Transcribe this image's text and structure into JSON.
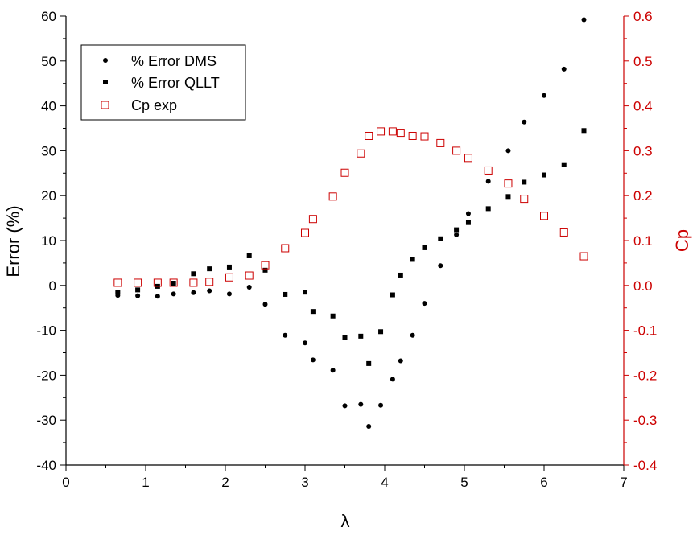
{
  "chart_data": {
    "type": "scatter",
    "xlabel": "λ",
    "ylabel_left": "Error (%)",
    "ylabel_right": "Cp",
    "xlim": [
      0,
      7
    ],
    "ylim_left": [
      -40,
      60
    ],
    "ylim_right": [
      -0.4,
      0.6
    ],
    "x_ticks": [
      0,
      1,
      2,
      3,
      4,
      5,
      6,
      7
    ],
    "y_left_ticks": [
      -40,
      -30,
      -20,
      -10,
      0,
      10,
      20,
      30,
      40,
      50,
      60
    ],
    "y_right_ticks": [
      "-0.4",
      "-0.3",
      "-0.2",
      "-0.1",
      "0.0",
      "0.1",
      "0.2",
      "0.3",
      "0.4",
      "0.5",
      "0.6"
    ],
    "grid": false,
    "legend_position": "top-left",
    "colors": {
      "left_axis": "#000000",
      "right_axis": "#cc0000"
    },
    "series": [
      {
        "name": "% Error DMS",
        "axis": "left",
        "marker": "circle",
        "color": "#000000",
        "points": [
          [
            0.65,
            -2.2
          ],
          [
            0.9,
            -2.3
          ],
          [
            1.15,
            -2.4
          ],
          [
            1.35,
            -1.9
          ],
          [
            1.6,
            -1.6
          ],
          [
            1.8,
            -1.2
          ],
          [
            2.05,
            -1.9
          ],
          [
            2.3,
            -0.4
          ],
          [
            2.5,
            -4.2
          ],
          [
            2.75,
            -11.1
          ],
          [
            3.0,
            -12.8
          ],
          [
            3.1,
            -16.6
          ],
          [
            3.35,
            -18.9
          ],
          [
            3.5,
            -26.8
          ],
          [
            3.7,
            -26.5
          ],
          [
            3.8,
            -31.4
          ],
          [
            3.95,
            -26.7
          ],
          [
            4.1,
            -20.9
          ],
          [
            4.2,
            -16.8
          ],
          [
            4.35,
            -11.1
          ],
          [
            4.5,
            -4.0
          ],
          [
            4.7,
            4.4
          ],
          [
            4.9,
            11.3
          ],
          [
            5.05,
            16.0
          ],
          [
            5.3,
            23.2
          ],
          [
            5.55,
            30.0
          ],
          [
            5.75,
            36.4
          ],
          [
            6.0,
            42.3
          ],
          [
            6.25,
            48.2
          ],
          [
            6.5,
            59.2
          ]
        ]
      },
      {
        "name": "% Error QLLT",
        "axis": "left",
        "marker": "square",
        "color": "#000000",
        "points": [
          [
            0.65,
            -1.5
          ],
          [
            0.9,
            -1.0
          ],
          [
            1.15,
            -0.2
          ],
          [
            1.35,
            0.5
          ],
          [
            1.6,
            2.6
          ],
          [
            1.8,
            3.7
          ],
          [
            2.05,
            4.1
          ],
          [
            2.3,
            6.6
          ],
          [
            2.5,
            3.4
          ],
          [
            2.75,
            -2.0
          ],
          [
            3.0,
            -1.5
          ],
          [
            3.1,
            -5.8
          ],
          [
            3.35,
            -6.8
          ],
          [
            3.5,
            -11.6
          ],
          [
            3.7,
            -11.3
          ],
          [
            3.8,
            -17.4
          ],
          [
            3.95,
            -10.3
          ],
          [
            4.1,
            -2.1
          ],
          [
            4.2,
            2.3
          ],
          [
            4.35,
            5.8
          ],
          [
            4.5,
            8.4
          ],
          [
            4.7,
            10.4
          ],
          [
            4.9,
            12.4
          ],
          [
            5.05,
            14.0
          ],
          [
            5.3,
            17.1
          ],
          [
            5.55,
            19.8
          ],
          [
            5.75,
            23.0
          ],
          [
            6.0,
            24.6
          ],
          [
            6.25,
            26.9
          ],
          [
            6.5,
            34.5
          ]
        ]
      },
      {
        "name": "Cp exp",
        "axis": "right",
        "marker": "open-square",
        "color": "#cc0000",
        "points": [
          [
            0.65,
            0.006
          ],
          [
            0.9,
            0.006
          ],
          [
            1.15,
            0.006
          ],
          [
            1.35,
            0.006
          ],
          [
            1.6,
            0.006
          ],
          [
            1.8,
            0.008
          ],
          [
            2.05,
            0.018
          ],
          [
            2.3,
            0.022
          ],
          [
            2.5,
            0.045
          ],
          [
            2.75,
            0.083
          ],
          [
            3.0,
            0.117
          ],
          [
            3.1,
            0.148
          ],
          [
            3.35,
            0.198
          ],
          [
            3.5,
            0.251
          ],
          [
            3.7,
            0.294
          ],
          [
            3.8,
            0.333
          ],
          [
            3.95,
            0.343
          ],
          [
            4.1,
            0.343
          ],
          [
            4.2,
            0.34
          ],
          [
            4.35,
            0.333
          ],
          [
            4.5,
            0.332
          ],
          [
            4.7,
            0.317
          ],
          [
            4.9,
            0.3
          ],
          [
            5.05,
            0.284
          ],
          [
            5.3,
            0.256
          ],
          [
            5.55,
            0.227
          ],
          [
            5.75,
            0.193
          ],
          [
            6.0,
            0.155
          ],
          [
            6.25,
            0.118
          ],
          [
            6.5,
            0.065
          ]
        ]
      }
    ]
  }
}
